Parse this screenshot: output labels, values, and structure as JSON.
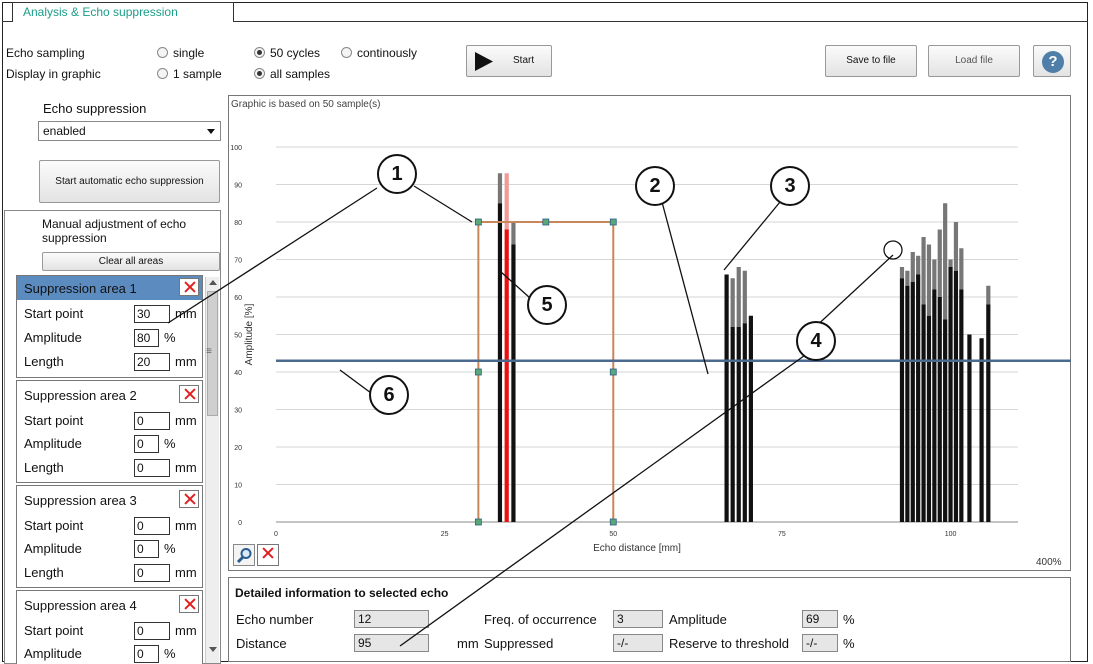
{
  "tab": {
    "label": "Analysis & Echo suppression"
  },
  "sampling": {
    "echo_label": "Echo sampling",
    "display_label": "Display in graphic",
    "opt_single": "single",
    "opt_50": "50 cycles",
    "opt_cont": "continously",
    "opt_1sample": "1 sample",
    "opt_all": "all samples"
  },
  "toolbar": {
    "start": "Start",
    "save": "Save to file",
    "load": "Load file",
    "help": "?"
  },
  "echo_suppression": {
    "label": "Echo suppression",
    "select_value": "enabled",
    "auto_button": "Start automatic echo suppression",
    "manual_label": "Manual adjustment of echo suppression",
    "clear_button": "Clear all areas"
  },
  "areas": [
    {
      "title": "Suppression area 1",
      "start_label": "Start point",
      "start": "30",
      "amp_label": "Amplitude",
      "amp": "80",
      "len_label": "Length",
      "len": "20"
    },
    {
      "title": "Suppression area 2",
      "start_label": "Start point",
      "start": "0",
      "amp_label": "Amplitude",
      "amp": "0",
      "len_label": "Length",
      "len": "0"
    },
    {
      "title": "Suppression area 3",
      "start_label": "Start point",
      "start": "0",
      "amp_label": "Amplitude",
      "amp": "0",
      "len_label": "Length",
      "len": "0"
    },
    {
      "title": "Suppression area 4",
      "start_label": "Start point",
      "start": "0",
      "amp_label": "Amplitude",
      "amp": "0"
    }
  ],
  "units": {
    "mm": "mm",
    "pct": "%",
    "scroll_marker": "≡"
  },
  "graph": {
    "caption": "Graphic is based on 50 sample(s)",
    "zoom": "400%"
  },
  "chart_data": {
    "type": "bar",
    "xlabel": "Echo distance [mm]",
    "ylabel": "Amplitude [%]",
    "xlim": [
      0,
      110
    ],
    "ylim": [
      0,
      100
    ],
    "xticks": [
      0,
      25,
      50,
      75,
      100
    ],
    "yticks": [
      0,
      10,
      20,
      30,
      40,
      50,
      60,
      70,
      80,
      90,
      100
    ],
    "threshold": 43,
    "suppression_area": {
      "start": 30,
      "length": 20,
      "amplitude": 80
    },
    "bars": [
      {
        "x": 33.2,
        "values": [
          85,
          93
        ]
      },
      {
        "x": 34.2,
        "values": [
          78,
          93
        ],
        "color": "#e81010",
        "top_color": "#f19a9a"
      },
      {
        "x": 35.2,
        "values": [
          74,
          80
        ]
      },
      {
        "x": 66.8,
        "values": [
          66
        ]
      },
      {
        "x": 67.7,
        "values": [
          52,
          65
        ]
      },
      {
        "x": 68.6,
        "values": [
          52,
          68
        ]
      },
      {
        "x": 69.5,
        "values": [
          53,
          67
        ]
      },
      {
        "x": 70.4,
        "values": [
          55
        ]
      },
      {
        "x": 92.8,
        "values": [
          65,
          68
        ]
      },
      {
        "x": 93.6,
        "values": [
          63,
          67
        ]
      },
      {
        "x": 94.4,
        "values": [
          64,
          72
        ]
      },
      {
        "x": 95.2,
        "values": [
          66,
          71
        ]
      },
      {
        "x": 96.0,
        "values": [
          58,
          76
        ]
      },
      {
        "x": 96.8,
        "values": [
          55,
          74
        ]
      },
      {
        "x": 97.6,
        "values": [
          62,
          70
        ]
      },
      {
        "x": 98.4,
        "values": [
          60,
          78
        ]
      },
      {
        "x": 99.2,
        "values": [
          54,
          85
        ]
      },
      {
        "x": 100.0,
        "values": [
          68,
          70
        ]
      },
      {
        "x": 100.8,
        "values": [
          67,
          80
        ]
      },
      {
        "x": 101.6,
        "values": [
          62,
          73
        ]
      },
      {
        "x": 102.8,
        "values": [
          50
        ]
      },
      {
        "x": 104.6,
        "values": [
          49
        ]
      },
      {
        "x": 105.6,
        "values": [
          58,
          63
        ]
      }
    ]
  },
  "details": {
    "title": "Detailed information to selected echo",
    "echo_number_label": "Echo number",
    "echo_number": "12",
    "distance_label": "Distance",
    "distance": "95",
    "distance_unit": "mm",
    "freq_label": "Freq. of occurrence",
    "freq": "3",
    "suppressed_label": "Suppressed",
    "suppressed": "-/-",
    "amplitude_label": "Amplitude",
    "amplitude": "69",
    "amplitude_unit": "%",
    "reserve_label": "Reserve to threshold",
    "reserve": "-/-",
    "reserve_unit": "%"
  },
  "callouts": [
    "1",
    "2",
    "3",
    "4",
    "5",
    "6"
  ]
}
